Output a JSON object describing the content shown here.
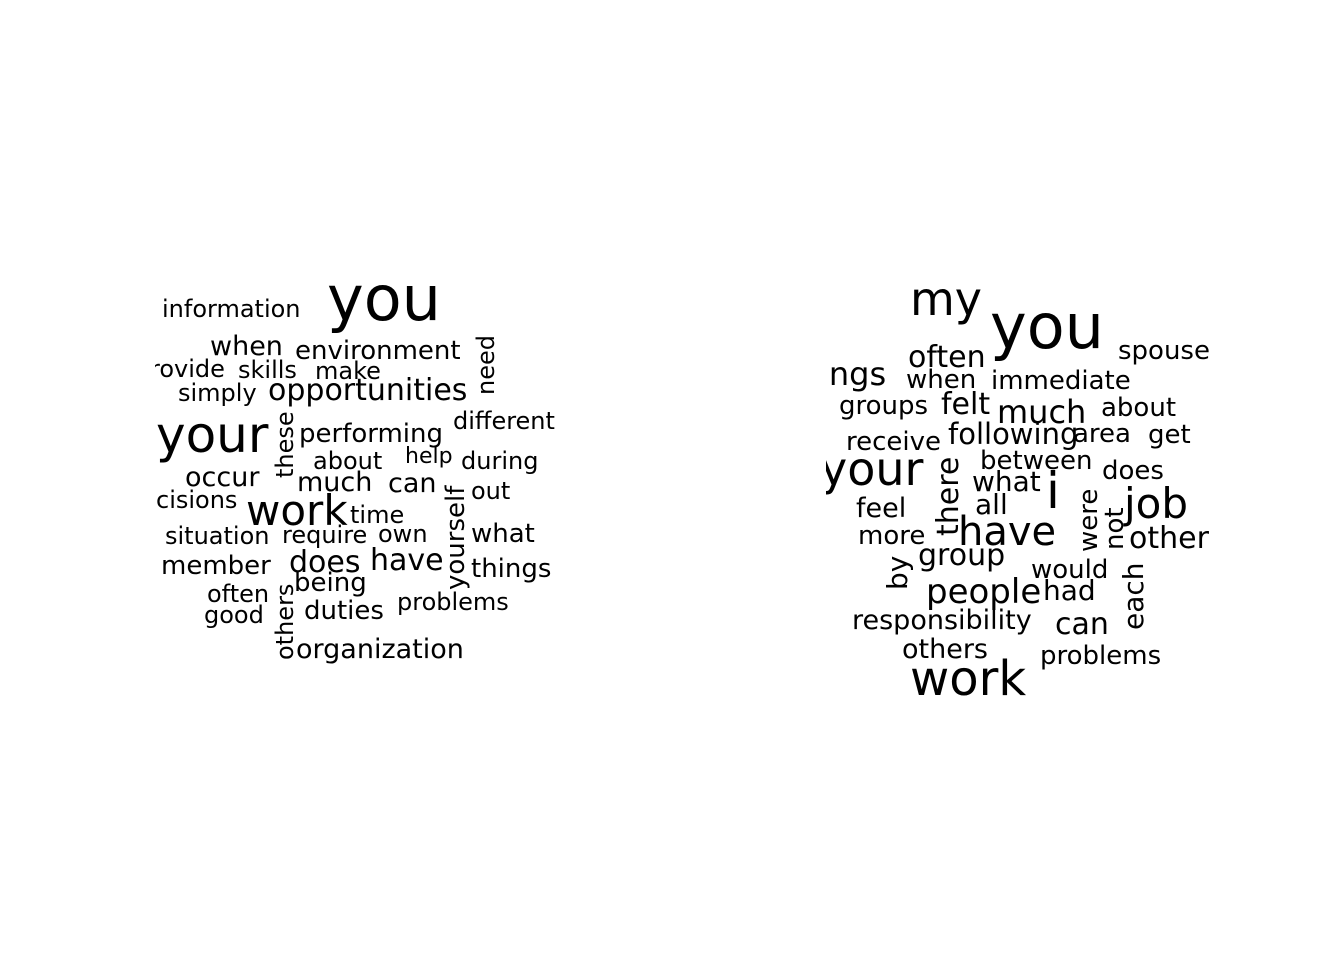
{
  "clouds": [
    {
      "words": [
        "information",
        "you",
        "when",
        "environment",
        "need",
        "rovide",
        "skills",
        "make",
        "simply",
        "opportunities",
        "your",
        "these",
        "performing",
        "different",
        "about",
        "help",
        "during",
        "occur",
        "much",
        "can",
        "out",
        "cisions",
        "work",
        "yourself",
        "time",
        "situation",
        "require",
        "own",
        "what",
        "member",
        "does",
        "have",
        "things",
        "often",
        "being",
        "good",
        "others",
        "duties",
        "problems",
        "organization"
      ]
    },
    {
      "words": [
        "my",
        "you",
        "spouse",
        "often",
        "ings",
        "when",
        "immediate",
        "groups",
        "felt",
        "much",
        "about",
        "receive",
        "following",
        "area",
        "get",
        "your",
        "there",
        "between",
        "does",
        "what",
        "i",
        "were",
        "job",
        "feel",
        "all",
        "not",
        "more",
        "have",
        "other",
        "group",
        "by",
        "would",
        "each",
        "people",
        "had",
        "responsibility",
        "can",
        "others",
        "problems",
        "work"
      ]
    }
  ]
}
